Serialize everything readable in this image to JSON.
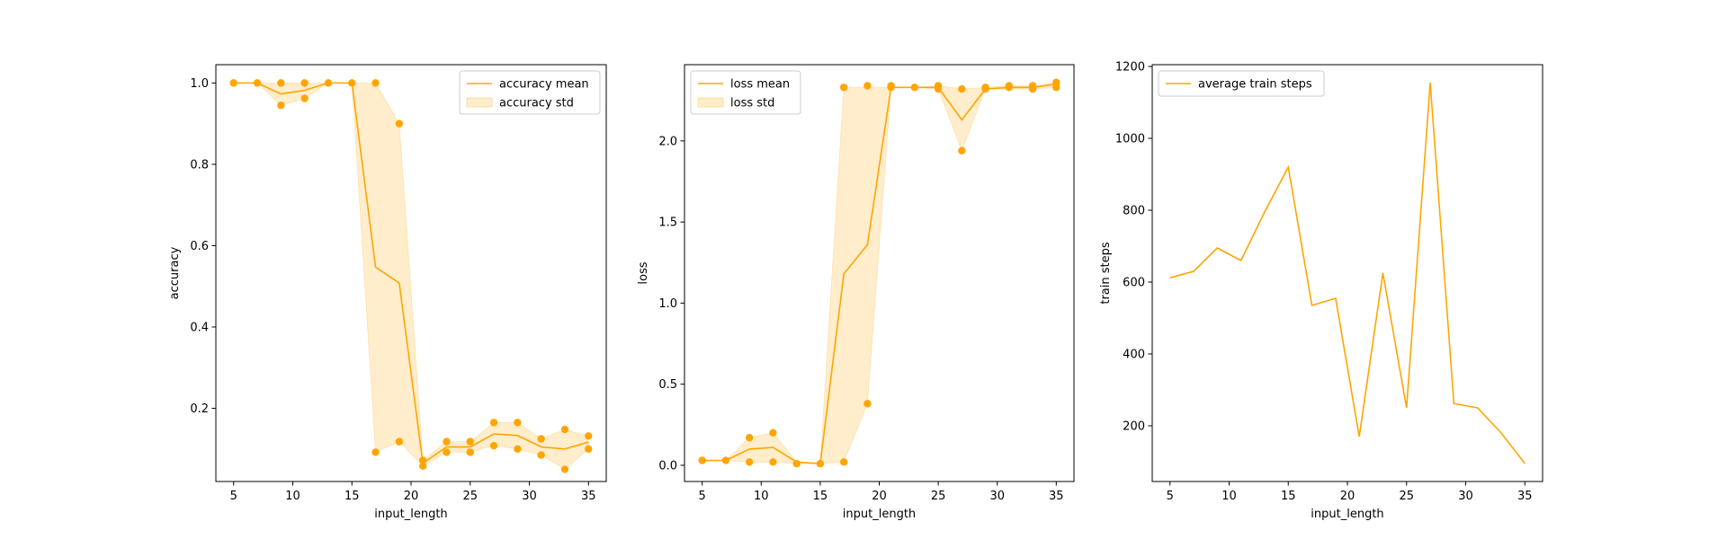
{
  "colors": {
    "series": "#ffa500",
    "band_fill": "#ffa500",
    "axes": "#000000",
    "background": "#ffffff"
  },
  "chart_data": [
    {
      "type": "line",
      "xlabel": "input_length",
      "ylabel": "accuracy",
      "xlim": [
        3.5,
        36.5
      ],
      "ylim": [
        0.02,
        1.045
      ],
      "xticks": [
        5,
        10,
        15,
        20,
        25,
        30,
        35
      ],
      "yticks": [
        0.2,
        0.4,
        0.6,
        0.8,
        1.0
      ],
      "ytick_labels": [
        "0.2",
        "0.4",
        "0.6",
        "0.8",
        "1.0"
      ],
      "grid": false,
      "legend": {
        "placement": "top-right",
        "entries": [
          "accuracy mean",
          "accuracy std"
        ]
      },
      "x": [
        5,
        7,
        9,
        11,
        13,
        15,
        17,
        19,
        21,
        23,
        25,
        27,
        29,
        31,
        33,
        35
      ],
      "series": [
        {
          "name": "accuracy mean",
          "kind": "line",
          "values": [
            1.0,
            1.0,
            0.973,
            0.982,
            1.0,
            1.0,
            0.547,
            0.508,
            0.065,
            0.105,
            0.105,
            0.137,
            0.133,
            0.105,
            0.1,
            0.117
          ]
        }
      ],
      "std_band": {
        "name": "accuracy std",
        "lower": [
          1.0,
          1.0,
          0.945,
          0.962,
          1.0,
          1.0,
          0.092,
          0.118,
          0.058,
          0.092,
          0.092,
          0.108,
          0.1,
          0.085,
          0.05,
          0.1
        ],
        "upper": [
          1.0,
          1.0,
          1.0,
          1.0,
          1.0,
          1.0,
          1.0,
          0.9,
          0.072,
          0.118,
          0.118,
          0.165,
          0.165,
          0.125,
          0.148,
          0.132
        ]
      },
      "points": {
        "x": [
          5,
          7,
          9,
          9,
          11,
          11,
          13,
          15,
          17,
          17,
          19,
          19,
          21,
          21,
          23,
          23,
          25,
          25,
          27,
          27,
          29,
          29,
          31,
          31,
          33,
          33,
          35,
          35
        ],
        "y": [
          1.0,
          1.0,
          1.0,
          0.945,
          1.0,
          0.962,
          1.0,
          1.0,
          1.0,
          0.092,
          0.9,
          0.118,
          0.072,
          0.058,
          0.118,
          0.092,
          0.118,
          0.092,
          0.165,
          0.108,
          0.165,
          0.1,
          0.125,
          0.085,
          0.148,
          0.05,
          0.132,
          0.1
        ]
      }
    },
    {
      "type": "line",
      "xlabel": "input_length",
      "ylabel": "loss",
      "xlim": [
        3.5,
        36.5
      ],
      "ylim": [
        -0.1,
        2.47
      ],
      "xticks": [
        5,
        10,
        15,
        20,
        25,
        30,
        35
      ],
      "yticks": [
        0.0,
        0.5,
        1.0,
        1.5,
        2.0
      ],
      "ytick_labels": [
        "0.0",
        "0.5",
        "1.0",
        "1.5",
        "2.0"
      ],
      "grid": false,
      "legend": {
        "placement": "top-left",
        "entries": [
          "loss mean",
          "loss std"
        ]
      },
      "x": [
        5,
        7,
        9,
        11,
        13,
        15,
        17,
        19,
        21,
        23,
        25,
        27,
        29,
        31,
        33,
        35
      ],
      "series": [
        {
          "name": "loss mean",
          "kind": "line",
          "values": [
            0.03,
            0.03,
            0.1,
            0.11,
            0.02,
            0.01,
            1.18,
            1.36,
            2.33,
            2.33,
            2.33,
            2.13,
            2.32,
            2.33,
            2.33,
            2.35
          ]
        }
      ],
      "std_band": {
        "name": "loss std",
        "lower": [
          0.03,
          0.03,
          0.02,
          0.02,
          0.01,
          0.01,
          0.02,
          0.38,
          2.33,
          2.33,
          2.32,
          1.94,
          2.32,
          2.32,
          2.32,
          2.33
        ],
        "upper": [
          0.03,
          0.03,
          0.17,
          0.2,
          0.02,
          0.01,
          2.33,
          2.33,
          2.33,
          2.33,
          2.34,
          2.32,
          2.33,
          2.34,
          2.34,
          2.36
        ]
      },
      "points": {
        "x": [
          5,
          7,
          9,
          9,
          11,
          11,
          13,
          15,
          17,
          17,
          19,
          19,
          21,
          21,
          23,
          25,
          25,
          27,
          27,
          29,
          29,
          31,
          31,
          33,
          33,
          35,
          35
        ],
        "y": [
          0.03,
          0.03,
          0.17,
          0.02,
          0.2,
          0.02,
          0.01,
          0.01,
          2.33,
          0.02,
          2.34,
          0.38,
          2.33,
          2.34,
          2.33,
          2.32,
          2.34,
          2.32,
          1.94,
          2.32,
          2.33,
          2.34,
          2.33,
          2.34,
          2.32,
          2.33,
          2.36
        ]
      }
    },
    {
      "type": "line",
      "xlabel": "input_length",
      "ylabel": "train steps",
      "xlim": [
        3.5,
        36.5
      ],
      "ylim": [
        45,
        1205
      ],
      "xticks": [
        5,
        10,
        15,
        20,
        25,
        30,
        35
      ],
      "yticks": [
        200,
        400,
        600,
        800,
        1000,
        1200
      ],
      "ytick_labels": [
        "200",
        "400",
        "600",
        "800",
        "1000",
        "1200"
      ],
      "grid": false,
      "legend": {
        "placement": "top-left",
        "entries": [
          "average train steps"
        ]
      },
      "x": [
        5,
        7,
        9,
        11,
        13,
        15,
        17,
        19,
        21,
        23,
        25,
        27,
        29,
        31,
        33,
        35
      ],
      "series": [
        {
          "name": "average train steps",
          "kind": "line",
          "values": [
            612,
            630,
            695,
            660,
            795,
            920,
            535,
            555,
            170,
            625,
            250,
            1155,
            262,
            250,
            180,
            95
          ]
        }
      ]
    }
  ]
}
